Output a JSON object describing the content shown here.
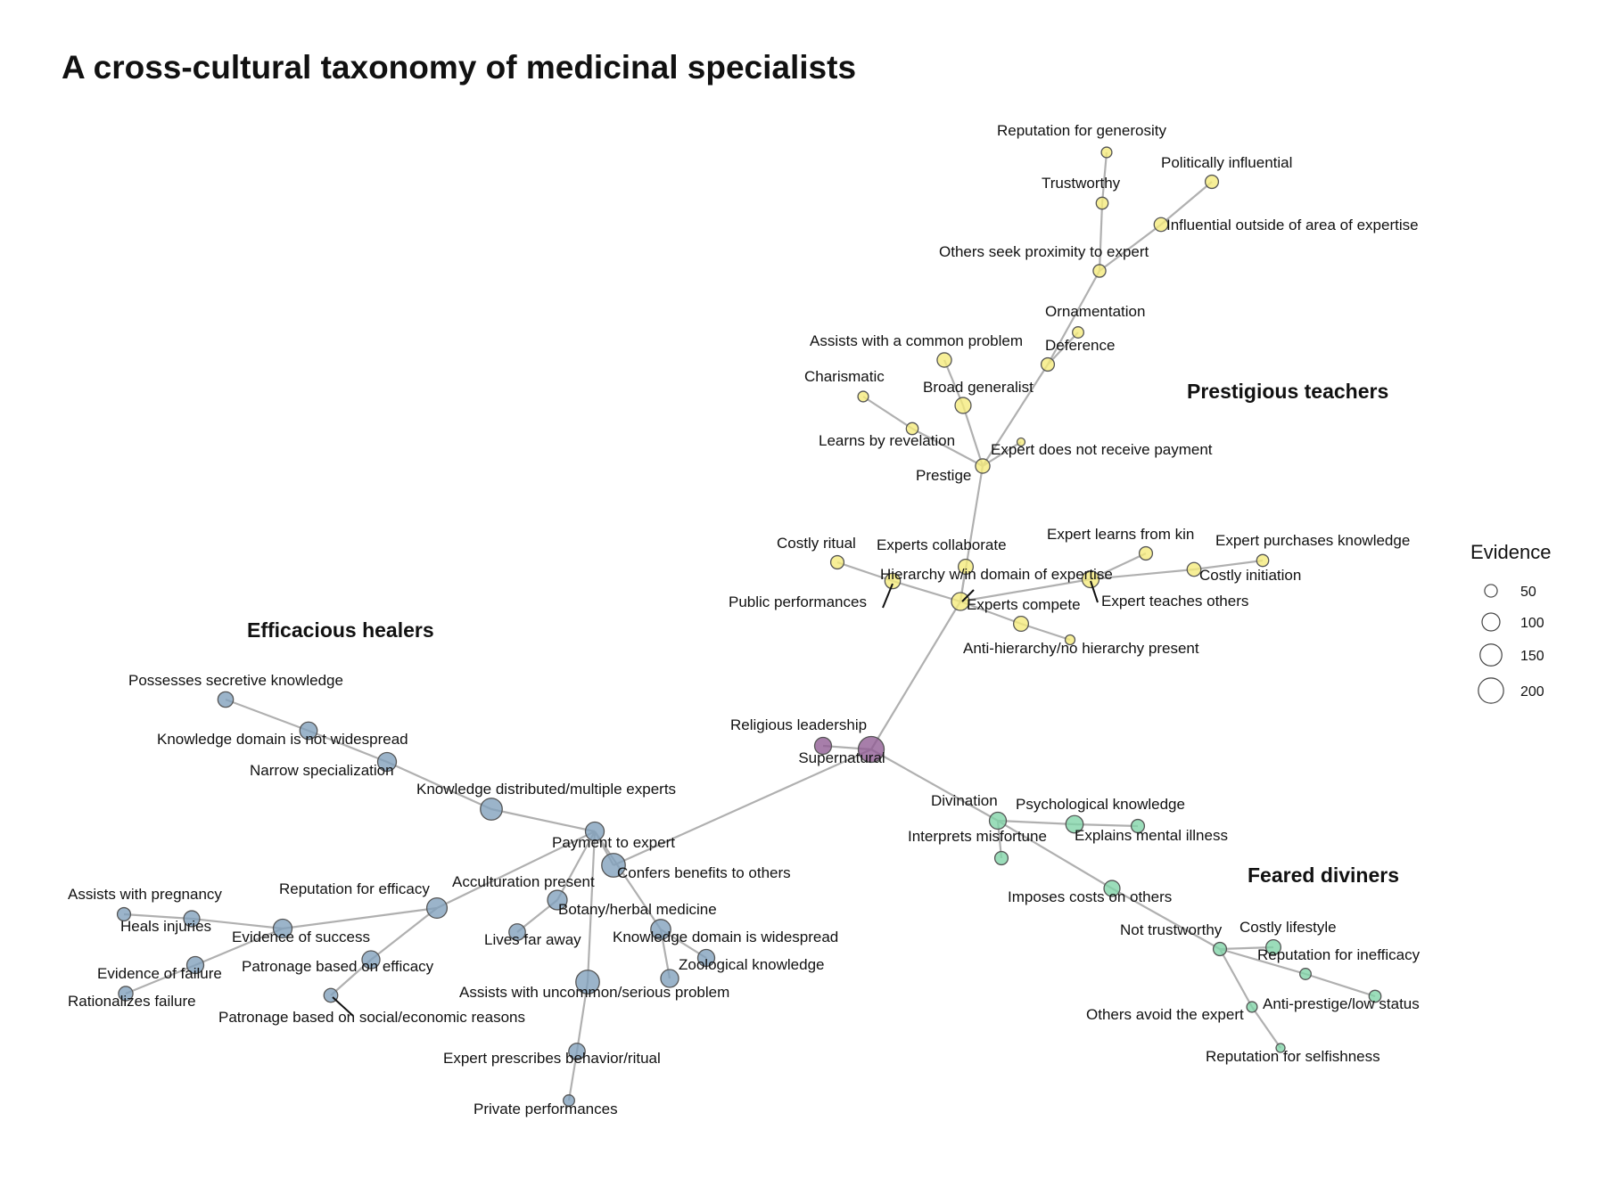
{
  "title": "A cross-cultural taxonomy of medicinal specialists",
  "colors": {
    "healers": "#7f9fbb",
    "teachers": "#f5ea7a",
    "diviners": "#7fd3a6",
    "root": "#8e5a92"
  },
  "clusters": [
    {
      "id": "teachers",
      "label": "Prestigious teachers"
    },
    {
      "id": "healers",
      "label": "Efficacious healers"
    },
    {
      "id": "diviners",
      "label": "Feared diviners"
    }
  ],
  "legend": {
    "title": "Evidence",
    "entries": [
      {
        "label": "50",
        "value": 50
      },
      {
        "label": "100",
        "value": 100
      },
      {
        "label": "150",
        "value": 150
      },
      {
        "label": "200",
        "value": 200
      }
    ]
  },
  "nodes": [
    {
      "id": "supernatural",
      "label": "Supernatural",
      "group": "root",
      "evidence": 210
    },
    {
      "id": "religious",
      "label": "Religious leadership",
      "group": "root",
      "evidence": 90
    },
    {
      "id": "hierarchy",
      "label": "Hierarchy w/in domain of expertise",
      "group": "teachers",
      "evidence": 100
    },
    {
      "id": "prestige",
      "label": "Prestige",
      "group": "teachers",
      "evidence": 65
    },
    {
      "id": "broad_generalist",
      "label": "Broad generalist",
      "group": "teachers",
      "evidence": 80
    },
    {
      "id": "assists_common",
      "label": "Assists with a common problem",
      "group": "teachers",
      "evidence": 65
    },
    {
      "id": "learns_revelation",
      "label": "Learns by revelation",
      "group": "teachers",
      "evidence": 45
    },
    {
      "id": "charismatic",
      "label": "Charismatic",
      "group": "teachers",
      "evidence": 35
    },
    {
      "id": "no_payment",
      "label": "Expert does not receive payment",
      "group": "teachers",
      "evidence": 20
    },
    {
      "id": "deference",
      "label": "Deference",
      "group": "teachers",
      "evidence": 55
    },
    {
      "id": "ornamentation",
      "label": "Ornamentation",
      "group": "teachers",
      "evidence": 40
    },
    {
      "id": "proximity",
      "label": "Others seek proximity to expert",
      "group": "teachers",
      "evidence": 50
    },
    {
      "id": "trustworthy",
      "label": "Trustworthy",
      "group": "teachers",
      "evidence": 45
    },
    {
      "id": "generosity",
      "label": "Reputation for generosity",
      "group": "teachers",
      "evidence": 35
    },
    {
      "id": "influential_outside",
      "label": "Influential outside of area of expertise",
      "group": "teachers",
      "evidence": 60
    },
    {
      "id": "politically",
      "label": "Politically influential",
      "group": "teachers",
      "evidence": 55
    },
    {
      "id": "collaborate",
      "label": "Experts collaborate",
      "group": "teachers",
      "evidence": 70
    },
    {
      "id": "public_perf",
      "label": "Public performances",
      "group": "teachers",
      "evidence": 75
    },
    {
      "id": "costly_ritual",
      "label": "Costly ritual",
      "group": "teachers",
      "evidence": 55
    },
    {
      "id": "compete",
      "label": "Experts compete",
      "group": "teachers",
      "evidence": 70
    },
    {
      "id": "anti_hierarchy",
      "label": "Anti-hierarchy/no hierarchy present",
      "group": "teachers",
      "evidence": 30
    },
    {
      "id": "teaches",
      "label": "Expert teaches others",
      "group": "teachers",
      "evidence": 90
    },
    {
      "id": "learns_kin",
      "label": "Expert learns from kin",
      "group": "teachers",
      "evidence": 55
    },
    {
      "id": "costly_init",
      "label": "Costly initiation",
      "group": "teachers",
      "evidence": 60
    },
    {
      "id": "purchases",
      "label": "Expert purchases knowledge",
      "group": "teachers",
      "evidence": 45
    },
    {
      "id": "payment",
      "label": "Payment to expert",
      "group": "healers",
      "evidence": 175
    },
    {
      "id": "confers",
      "label": "Confers benefits to others",
      "group": "healers",
      "evidence": 110
    },
    {
      "id": "knowledge_distributed",
      "label": "Knowledge distributed/multiple experts",
      "group": "healers",
      "evidence": 150
    },
    {
      "id": "narrow",
      "label": "Narrow specialization",
      "group": "healers",
      "evidence": 110
    },
    {
      "id": "not_widespread",
      "label": "Knowledge domain is not widespread",
      "group": "healers",
      "evidence": 95
    },
    {
      "id": "secretive",
      "label": "Possesses secretive knowledge",
      "group": "healers",
      "evidence": 75
    },
    {
      "id": "acculturation",
      "label": "Acculturation present",
      "group": "healers",
      "evidence": 120
    },
    {
      "id": "lives_far",
      "label": "Lives far away",
      "group": "healers",
      "evidence": 85
    },
    {
      "id": "rep_efficacy",
      "label": "Reputation for efficacy",
      "group": "healers",
      "evidence": 130
    },
    {
      "id": "evidence_success",
      "label": "Evidence of success",
      "group": "healers",
      "evidence": 110
    },
    {
      "id": "heals_injuries",
      "label": "Heals injuries",
      "group": "healers",
      "evidence": 80
    },
    {
      "id": "assists_pregnancy",
      "label": "Assists with pregnancy",
      "group": "healers",
      "evidence": 55
    },
    {
      "id": "patronage_efficacy",
      "label": "Patronage based on efficacy",
      "group": "healers",
      "evidence": 100
    },
    {
      "id": "evidence_failure",
      "label": "Evidence of failure",
      "group": "healers",
      "evidence": 90
    },
    {
      "id": "rationalizes",
      "label": "Rationalizes failure",
      "group": "healers",
      "evidence": 65
    },
    {
      "id": "patronage_social",
      "label": "Patronage based on social/economic reasons",
      "group": "healers",
      "evidence": 60
    },
    {
      "id": "botany",
      "label": "Botany/herbal medicine",
      "group": "healers",
      "evidence": 125
    },
    {
      "id": "widespread",
      "label": "Knowledge domain is widespread",
      "group": "healers",
      "evidence": 90
    },
    {
      "id": "zoological",
      "label": "Zoological knowledge",
      "group": "healers",
      "evidence": 100
    },
    {
      "id": "uncommon",
      "label": "Assists with uncommon/serious problem",
      "group": "healers",
      "evidence": 175
    },
    {
      "id": "prescribes",
      "label": "Expert prescribes behavior/ritual",
      "group": "healers",
      "evidence": 85
    },
    {
      "id": "private_perf",
      "label": "Private performances",
      "group": "healers",
      "evidence": 40
    },
    {
      "id": "divination",
      "label": "Divination",
      "group": "diviners",
      "evidence": 90
    },
    {
      "id": "psychological",
      "label": "Psychological knowledge",
      "group": "diviners",
      "evidence": 95
    },
    {
      "id": "mental_illness",
      "label": "Explains mental illness",
      "group": "diviners",
      "evidence": 55
    },
    {
      "id": "misfortune",
      "label": "Interprets misfortune",
      "group": "diviners",
      "evidence": 55
    },
    {
      "id": "imposes",
      "label": "Imposes costs on others",
      "group": "diviners",
      "evidence": 80
    },
    {
      "id": "not_trustworthy",
      "label": "Not trustworthy",
      "group": "diviners",
      "evidence": 55
    },
    {
      "id": "costly_lifestyle",
      "label": "Costly lifestyle",
      "group": "diviners",
      "evidence": 70
    },
    {
      "id": "rep_inefficacy",
      "label": "Reputation for inefficacy",
      "group": "diviners",
      "evidence": 40
    },
    {
      "id": "anti_prestige",
      "label": "Anti-prestige/low status",
      "group": "diviners",
      "evidence": 45
    },
    {
      "id": "avoid",
      "label": "Others avoid the expert",
      "group": "diviners",
      "evidence": 35
    },
    {
      "id": "selfishness",
      "label": "Reputation for selfishness",
      "group": "diviners",
      "evidence": 25
    }
  ],
  "edges": [
    [
      "supernatural",
      "religious"
    ],
    [
      "supernatural",
      "hierarchy"
    ],
    [
      "supernatural",
      "payment"
    ],
    [
      "supernatural",
      "divination"
    ],
    [
      "hierarchy",
      "prestige"
    ],
    [
      "prestige",
      "broad_generalist"
    ],
    [
      "broad_generalist",
      "assists_common"
    ],
    [
      "prestige",
      "learns_revelation"
    ],
    [
      "learns_revelation",
      "charismatic"
    ],
    [
      "prestige",
      "no_payment"
    ],
    [
      "prestige",
      "deference"
    ],
    [
      "deference",
      "ornamentation"
    ],
    [
      "deference",
      "proximity"
    ],
    [
      "proximity",
      "trustworthy"
    ],
    [
      "trustworthy",
      "generosity"
    ],
    [
      "proximity",
      "influential_outside"
    ],
    [
      "influential_outside",
      "politically"
    ],
    [
      "hierarchy",
      "collaborate"
    ],
    [
      "hierarchy",
      "public_perf"
    ],
    [
      "public_perf",
      "costly_ritual"
    ],
    [
      "hierarchy",
      "compete"
    ],
    [
      "compete",
      "anti_hierarchy"
    ],
    [
      "hierarchy",
      "teaches"
    ],
    [
      "teaches",
      "learns_kin"
    ],
    [
      "teaches",
      "costly_init"
    ],
    [
      "costly_init",
      "purchases"
    ],
    [
      "payment",
      "confers"
    ],
    [
      "confers",
      "knowledge_distributed"
    ],
    [
      "knowledge_distributed",
      "narrow"
    ],
    [
      "narrow",
      "not_widespread"
    ],
    [
      "not_widespread",
      "secretive"
    ],
    [
      "confers",
      "acculturation"
    ],
    [
      "acculturation",
      "lives_far"
    ],
    [
      "confers",
      "rep_efficacy"
    ],
    [
      "rep_efficacy",
      "evidence_success"
    ],
    [
      "evidence_success",
      "heals_injuries"
    ],
    [
      "heals_injuries",
      "assists_pregnancy"
    ],
    [
      "rep_efficacy",
      "patronage_efficacy"
    ],
    [
      "patronage_efficacy",
      "patronage_social"
    ],
    [
      "evidence_success",
      "evidence_failure"
    ],
    [
      "evidence_failure",
      "rationalizes"
    ],
    [
      "confers",
      "botany"
    ],
    [
      "botany",
      "widespread"
    ],
    [
      "botany",
      "zoological"
    ],
    [
      "confers",
      "uncommon"
    ],
    [
      "uncommon",
      "prescribes"
    ],
    [
      "prescribes",
      "private_perf"
    ],
    [
      "divination",
      "psychological"
    ],
    [
      "psychological",
      "mental_illness"
    ],
    [
      "divination",
      "misfortune"
    ],
    [
      "divination",
      "imposes"
    ],
    [
      "imposes",
      "not_trustworthy"
    ],
    [
      "not_trustworthy",
      "costly_lifestyle"
    ],
    [
      "not_trustworthy",
      "rep_inefficacy"
    ],
    [
      "rep_inefficacy",
      "anti_prestige"
    ],
    [
      "not_trustworthy",
      "avoid"
    ],
    [
      "avoid",
      "selfishness"
    ]
  ]
}
